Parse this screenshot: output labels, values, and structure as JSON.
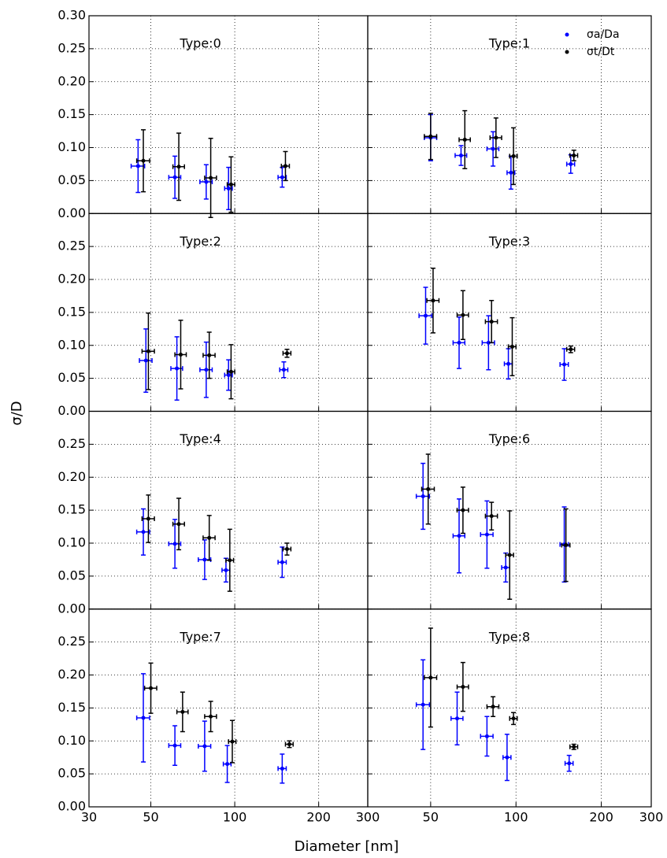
{
  "figure": {
    "xlabel": "Diameter [nm]",
    "ylabel": "σ/D"
  },
  "chart_data": [
    {
      "type": "scatter",
      "title": "Type:0",
      "log_x": true,
      "grid": true,
      "xlim": [
        30,
        300
      ],
      "ylim": [
        0,
        0.3
      ],
      "xticks": [
        30,
        50,
        100,
        200,
        300
      ],
      "yticks": [
        {
          "value": 0,
          "label": "0.00"
        },
        {
          "value": 0.05,
          "label": "0.05"
        },
        {
          "value": 0.1,
          "label": "0.10"
        },
        {
          "value": 0.15,
          "label": "0.15"
        },
        {
          "value": 0.2,
          "label": "0.20"
        },
        {
          "value": 0.25,
          "label": "0.25"
        },
        {
          "value": 0.3,
          "label": "0.30"
        }
      ],
      "show_xtick_labels": false,
      "show_ytick_labels": true,
      "series": [
        {
          "color": "#0000ff",
          "x": [
            45,
            61,
            79,
            95,
            148
          ],
          "values": [
            0.072,
            0.055,
            0.048,
            0.038,
            0.055
          ],
          "xerr": [
            2.5,
            3,
            4,
            3,
            5
          ],
          "yerr": [
            0.04,
            0.032,
            0.026,
            0.032,
            0.015
          ]
        },
        {
          "color": "#000000",
          "x": [
            47,
            63,
            82,
            97,
            152
          ],
          "values": [
            0.08,
            0.071,
            0.054,
            0.044,
            0.072
          ],
          "xerr": [
            2.5,
            3,
            4,
            3,
            5
          ],
          "yerr": [
            0.047,
            0.051,
            0.06,
            0.042,
            0.022
          ]
        }
      ]
    },
    {
      "type": "scatter",
      "title": "Type:1",
      "log_x": true,
      "grid": true,
      "xlim": [
        30,
        300
      ],
      "ylim": [
        0,
        0.3
      ],
      "xticks": [
        30,
        50,
        100,
        200,
        300
      ],
      "yticks": [
        0,
        0.05,
        0.1,
        0.15,
        0.2,
        0.25,
        0.3
      ],
      "show_xtick_labels": false,
      "show_ytick_labels": false,
      "legend": "upper right",
      "series": [
        {
          "name": "σa/Da",
          "color": "#0000ff",
          "x": [
            50,
            64,
            83,
            96,
            156
          ],
          "values": [
            0.115,
            0.088,
            0.098,
            0.062,
            0.075
          ],
          "xerr": [
            2.5,
            3,
            4,
            3,
            5
          ],
          "yerr": [
            0.035,
            0.015,
            0.026,
            0.025,
            0.014
          ]
        },
        {
          "name": "σt/Dt",
          "color": "#000000",
          "x": [
            50,
            66,
            85,
            98,
            160
          ],
          "values": [
            0.117,
            0.112,
            0.115,
            0.087,
            0.088
          ],
          "xerr": [
            2.5,
            3,
            4,
            3,
            5
          ],
          "yerr": [
            0.035,
            0.044,
            0.03,
            0.043,
            0.008
          ]
        }
      ]
    },
    {
      "type": "scatter",
      "title": "Type:2",
      "log_x": true,
      "grid": true,
      "xlim": [
        30,
        300
      ],
      "ylim": [
        0,
        0.3
      ],
      "xticks": [
        30,
        50,
        100,
        200,
        300
      ],
      "yticks": [
        {
          "value": 0,
          "label": "0.00"
        },
        {
          "value": 0.05,
          "label": "0.05"
        },
        {
          "value": 0.1,
          "label": "0.10"
        },
        {
          "value": 0.15,
          "label": "0.15"
        },
        {
          "value": 0.2,
          "label": "0.20"
        },
        {
          "value": 0.25,
          "label": "0.25"
        }
      ],
      "show_xtick_labels": false,
      "show_ytick_labels": true,
      "series": [
        {
          "color": "#0000ff",
          "x": [
            48,
            62,
            79,
            95,
            150
          ],
          "values": [
            0.077,
            0.065,
            0.063,
            0.055,
            0.063
          ],
          "xerr": [
            2.5,
            3,
            4,
            3,
            5
          ],
          "yerr": [
            0.048,
            0.048,
            0.042,
            0.023,
            0.012
          ]
        },
        {
          "color": "#000000",
          "x": [
            49,
            64,
            81,
            97,
            154
          ],
          "values": [
            0.091,
            0.086,
            0.085,
            0.06,
            0.088
          ],
          "xerr": [
            2.5,
            3,
            4,
            3,
            5
          ],
          "yerr": [
            0.058,
            0.052,
            0.035,
            0.041,
            0.006
          ]
        }
      ]
    },
    {
      "type": "scatter",
      "title": "Type:3",
      "log_x": true,
      "grid": true,
      "xlim": [
        30,
        300
      ],
      "ylim": [
        0,
        0.3
      ],
      "xticks": [
        30,
        50,
        100,
        200,
        300
      ],
      "yticks": [
        0,
        0.05,
        0.1,
        0.15,
        0.2,
        0.25
      ],
      "show_xtick_labels": false,
      "show_ytick_labels": false,
      "series": [
        {
          "color": "#0000ff",
          "x": [
            48,
            63,
            80,
            94,
            148
          ],
          "values": [
            0.145,
            0.104,
            0.104,
            0.072,
            0.071
          ],
          "xerr": [
            2.5,
            3,
            4,
            3,
            5
          ],
          "yerr": [
            0.043,
            0.039,
            0.041,
            0.023,
            0.024
          ]
        },
        {
          "color": "#000000",
          "x": [
            51,
            65,
            82,
            97,
            156
          ],
          "values": [
            0.168,
            0.146,
            0.136,
            0.098,
            0.094
          ],
          "xerr": [
            2.5,
            3,
            4,
            3,
            5
          ],
          "yerr": [
            0.049,
            0.037,
            0.032,
            0.044,
            0.005
          ]
        }
      ]
    },
    {
      "type": "scatter",
      "title": "Type:4",
      "log_x": true,
      "grid": true,
      "xlim": [
        30,
        300
      ],
      "ylim": [
        0,
        0.3
      ],
      "xticks": [
        30,
        50,
        100,
        200,
        300
      ],
      "yticks": [
        {
          "value": 0,
          "label": "0.00"
        },
        {
          "value": 0.05,
          "label": "0.05"
        },
        {
          "value": 0.1,
          "label": "0.10"
        },
        {
          "value": 0.15,
          "label": "0.15"
        },
        {
          "value": 0.2,
          "label": "0.20"
        },
        {
          "value": 0.25,
          "label": "0.25"
        }
      ],
      "show_xtick_labels": false,
      "show_ytick_labels": true,
      "series": [
        {
          "color": "#0000ff",
          "x": [
            47,
            61,
            78,
            93,
            148
          ],
          "values": [
            0.117,
            0.099,
            0.075,
            0.059,
            0.071
          ],
          "xerr": [
            2.5,
            3,
            4,
            3,
            5
          ],
          "yerr": [
            0.035,
            0.037,
            0.03,
            0.018,
            0.023
          ]
        },
        {
          "color": "#000000",
          "x": [
            49,
            63,
            81,
            96,
            154
          ],
          "values": [
            0.137,
            0.129,
            0.108,
            0.074,
            0.091
          ],
          "xerr": [
            2.5,
            3,
            4,
            3,
            5
          ],
          "yerr": [
            0.036,
            0.039,
            0.034,
            0.047,
            0.009
          ]
        }
      ]
    },
    {
      "type": "scatter",
      "title": "Type:6",
      "log_x": true,
      "grid": true,
      "xlim": [
        30,
        300
      ],
      "ylim": [
        0,
        0.3
      ],
      "xticks": [
        30,
        50,
        100,
        200,
        300
      ],
      "yticks": [
        0,
        0.05,
        0.1,
        0.15,
        0.2,
        0.25
      ],
      "show_xtick_labels": false,
      "show_ytick_labels": false,
      "series": [
        {
          "color": "#0000ff",
          "x": [
            47,
            63,
            79,
            92,
            148
          ],
          "values": [
            0.171,
            0.111,
            0.113,
            0.063,
            0.098
          ],
          "xerr": [
            2.5,
            3,
            4,
            3,
            5
          ],
          "yerr": [
            0.05,
            0.056,
            0.051,
            0.022,
            0.057
          ]
        },
        {
          "color": "#000000",
          "x": [
            49,
            65,
            82,
            95,
            150
          ],
          "values": [
            0.182,
            0.15,
            0.141,
            0.082,
            0.097
          ],
          "xerr": [
            2.5,
            3,
            4,
            3,
            5
          ],
          "yerr": [
            0.053,
            0.035,
            0.021,
            0.067,
            0.055
          ]
        }
      ]
    },
    {
      "type": "scatter",
      "title": "Type:7",
      "log_x": true,
      "grid": true,
      "xlim": [
        30,
        300
      ],
      "ylim": [
        0,
        0.3
      ],
      "xticks": [
        30,
        50,
        100,
        200,
        300
      ],
      "yticks": [
        {
          "value": 0,
          "label": "0.00"
        },
        {
          "value": 0.05,
          "label": "0.05"
        },
        {
          "value": 0.1,
          "label": "0.10"
        },
        {
          "value": 0.15,
          "label": "0.15"
        },
        {
          "value": 0.2,
          "label": "0.20"
        },
        {
          "value": 0.25,
          "label": "0.25"
        }
      ],
      "show_xtick_labels": true,
      "show_ytick_labels": true,
      "series": [
        {
          "color": "#0000ff",
          "x": [
            47,
            61,
            78,
            94,
            148
          ],
          "values": [
            0.135,
            0.093,
            0.092,
            0.065,
            0.058
          ],
          "xerr": [
            2.5,
            3,
            4,
            3,
            5
          ],
          "yerr": [
            0.067,
            0.03,
            0.038,
            0.028,
            0.022
          ]
        },
        {
          "color": "#000000",
          "x": [
            50,
            65,
            82,
            98,
            157
          ],
          "values": [
            0.18,
            0.144,
            0.137,
            0.099,
            0.095
          ],
          "xerr": [
            2.5,
            3,
            4,
            3,
            5
          ],
          "yerr": [
            0.038,
            0.03,
            0.023,
            0.032,
            0.005
          ]
        }
      ]
    },
    {
      "type": "scatter",
      "title": "Type:8",
      "log_x": true,
      "grid": true,
      "xlim": [
        30,
        300
      ],
      "ylim": [
        0,
        0.3
      ],
      "xticks": [
        50,
        100,
        200,
        300
      ],
      "yticks": [
        0,
        0.05,
        0.1,
        0.15,
        0.2,
        0.25
      ],
      "show_xtick_labels": true,
      "show_ytick_labels": false,
      "series": [
        {
          "color": "#0000ff",
          "x": [
            47,
            62,
            79,
            93,
            154
          ],
          "values": [
            0.155,
            0.134,
            0.107,
            0.075,
            0.066
          ],
          "xerr": [
            2.5,
            3,
            4,
            3,
            5
          ],
          "yerr": [
            0.068,
            0.04,
            0.03,
            0.035,
            0.012
          ]
        },
        {
          "color": "#000000",
          "x": [
            50,
            65,
            83,
            98,
            160
          ],
          "values": [
            0.196,
            0.182,
            0.152,
            0.134,
            0.091
          ],
          "xerr": [
            2.5,
            3,
            4,
            3,
            5
          ],
          "yerr": [
            0.075,
            0.037,
            0.015,
            0.009,
            0.004
          ]
        }
      ]
    }
  ]
}
